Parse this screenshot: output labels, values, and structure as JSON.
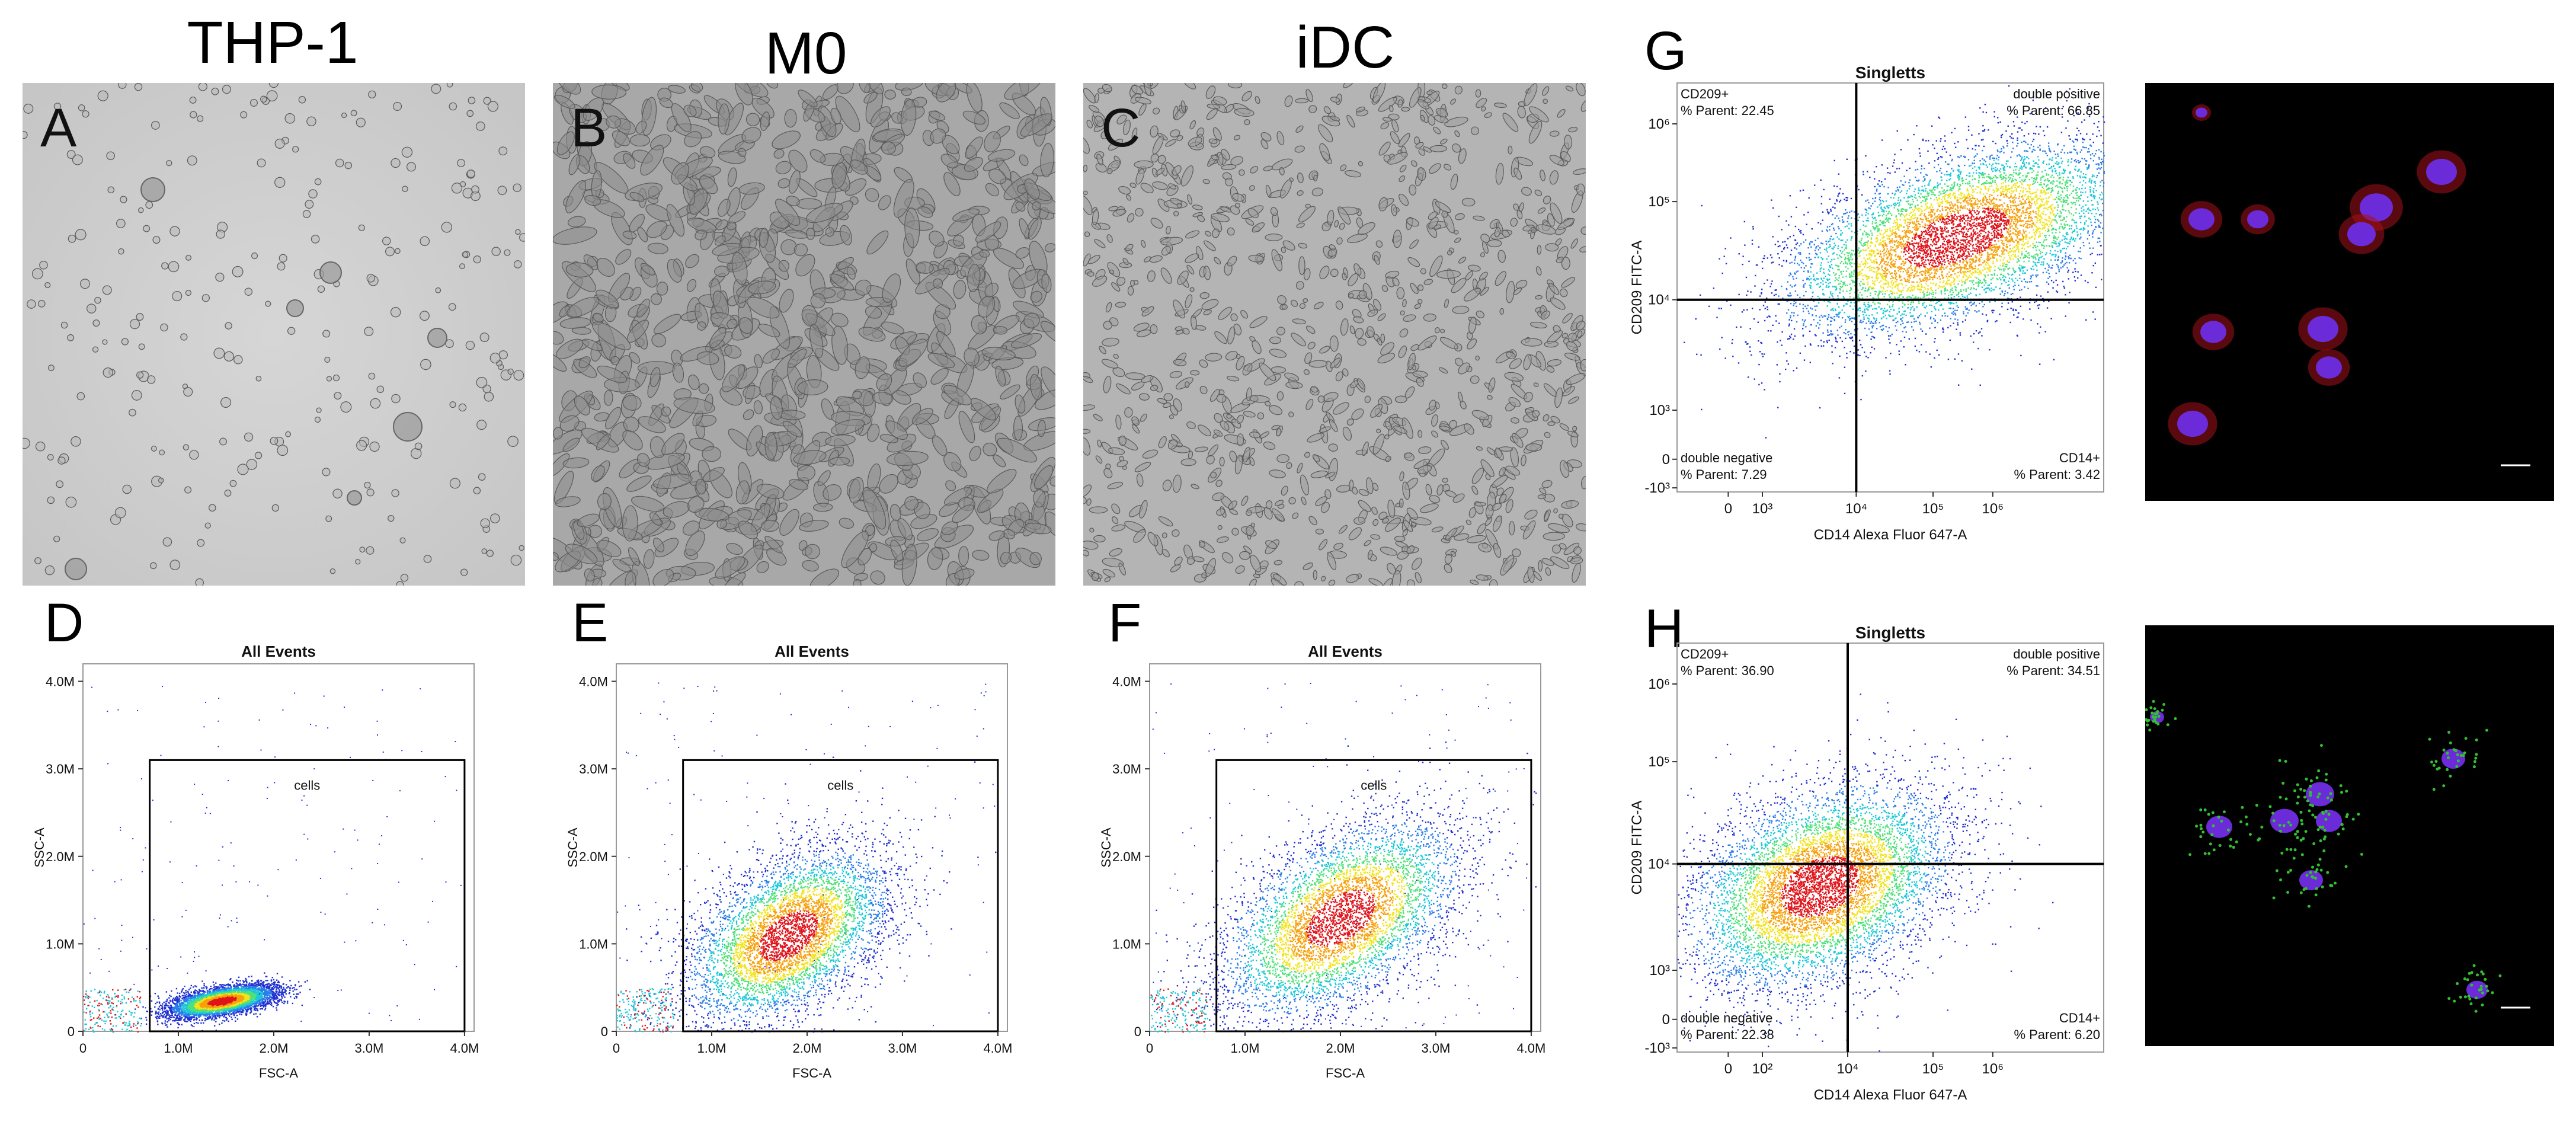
{
  "columns": {
    "thp1": "THP-1",
    "m0": "M0",
    "idc": "iDC"
  },
  "panel_letters": {
    "A": "A",
    "B": "B",
    "C": "C",
    "D": "D",
    "E": "E",
    "F": "F",
    "G": "G",
    "H": "H"
  },
  "chart_data": [
    {
      "id": "D",
      "type": "scatter",
      "title": "All Events",
      "xlabel": "FSC-A",
      "ylabel": "SSC-A",
      "xticks": [
        "0",
        "1.0M",
        "2.0M",
        "3.0M",
        "4.0M"
      ],
      "yticks": [
        "0",
        "1.0M",
        "2.0M",
        "3.0M",
        "4.0M"
      ],
      "xlim": [
        0,
        4.1
      ],
      "ylim": [
        0,
        4.2
      ],
      "gate_label": "cells",
      "gate_range": {
        "x": [
          0.7,
          4.0
        ],
        "y": [
          0.0,
          3.1
        ]
      },
      "population_center": [
        1.45,
        0.35
      ]
    },
    {
      "id": "E",
      "type": "scatter",
      "title": "All Events",
      "xlabel": "FSC-A",
      "ylabel": "SSC-A",
      "xticks": [
        "0",
        "1.0M",
        "2.0M",
        "3.0M",
        "4.0M"
      ],
      "yticks": [
        "0",
        "1.0M",
        "2.0M",
        "3.0M",
        "4.0M"
      ],
      "xlim": [
        0,
        4.1
      ],
      "ylim": [
        0,
        4.2
      ],
      "gate_label": "cells",
      "gate_range": {
        "x": [
          0.7,
          4.0
        ],
        "y": [
          0.0,
          3.1
        ]
      },
      "population_center": [
        1.8,
        1.1
      ]
    },
    {
      "id": "F",
      "type": "scatter",
      "title": "All Events",
      "xlabel": "FSC-A",
      "ylabel": "SSC-A",
      "xticks": [
        "0",
        "1.0M",
        "2.0M",
        "3.0M",
        "4.0M"
      ],
      "yticks": [
        "0",
        "1.0M",
        "2.0M",
        "3.0M",
        "4.0M"
      ],
      "xlim": [
        0,
        4.1
      ],
      "ylim": [
        0,
        4.2
      ],
      "gate_label": "cells",
      "gate_range": {
        "x": [
          0.7,
          4.0
        ],
        "y": [
          0.0,
          3.1
        ]
      },
      "population_center": [
        2.0,
        1.3
      ]
    },
    {
      "id": "G",
      "type": "scatter",
      "title": "Singletts",
      "xlabel": "CD14 Alexa Fluor 647-A",
      "ylabel": "CD209 FITC-A",
      "xticks": [
        "0",
        "10³",
        "10⁴",
        "10⁵",
        "10⁶"
      ],
      "yticks": [
        "-10³",
        "0",
        "10³",
        "10⁴",
        "10⁵",
        "10⁶"
      ],
      "quadrants": {
        "ul": {
          "name": "CD209+",
          "pct": "% Parent: 22.45"
        },
        "ur": {
          "name": "double positive",
          "pct": "% Parent: 66.85"
        },
        "ll": {
          "name": "double negative",
          "pct": "% Parent: 7.29"
        },
        "lr": {
          "name": "CD14+",
          "pct": "% Parent: 3.42"
        }
      },
      "values": {
        "CD209+": 22.45,
        "double positive": 66.85,
        "double negative": 7.29,
        "CD14+": 3.42
      }
    },
    {
      "id": "H",
      "type": "scatter",
      "title": "Singletts",
      "xlabel": "CD14 Alexa Fluor 647-A",
      "ylabel": "CD209 FITC-A",
      "xticks": [
        "0",
        "10²",
        "10⁴",
        "10⁵",
        "10⁶"
      ],
      "yticks": [
        "-10³",
        "0",
        "10³",
        "10⁴",
        "10⁵",
        "10⁶"
      ],
      "quadrants": {
        "ul": {
          "name": "CD209+",
          "pct": "% Parent: 36.90"
        },
        "ur": {
          "name": "double positive",
          "pct": "% Parent: 34.51"
        },
        "ll": {
          "name": "double negative",
          "pct": "% Parent: 22.38"
        },
        "lr": {
          "name": "CD14+",
          "pct": "% Parent: 6.20"
        }
      },
      "values": {
        "CD209+": 36.9,
        "double positive": 34.51,
        "double negative": 22.38,
        "CD14+": 6.2
      }
    }
  ]
}
